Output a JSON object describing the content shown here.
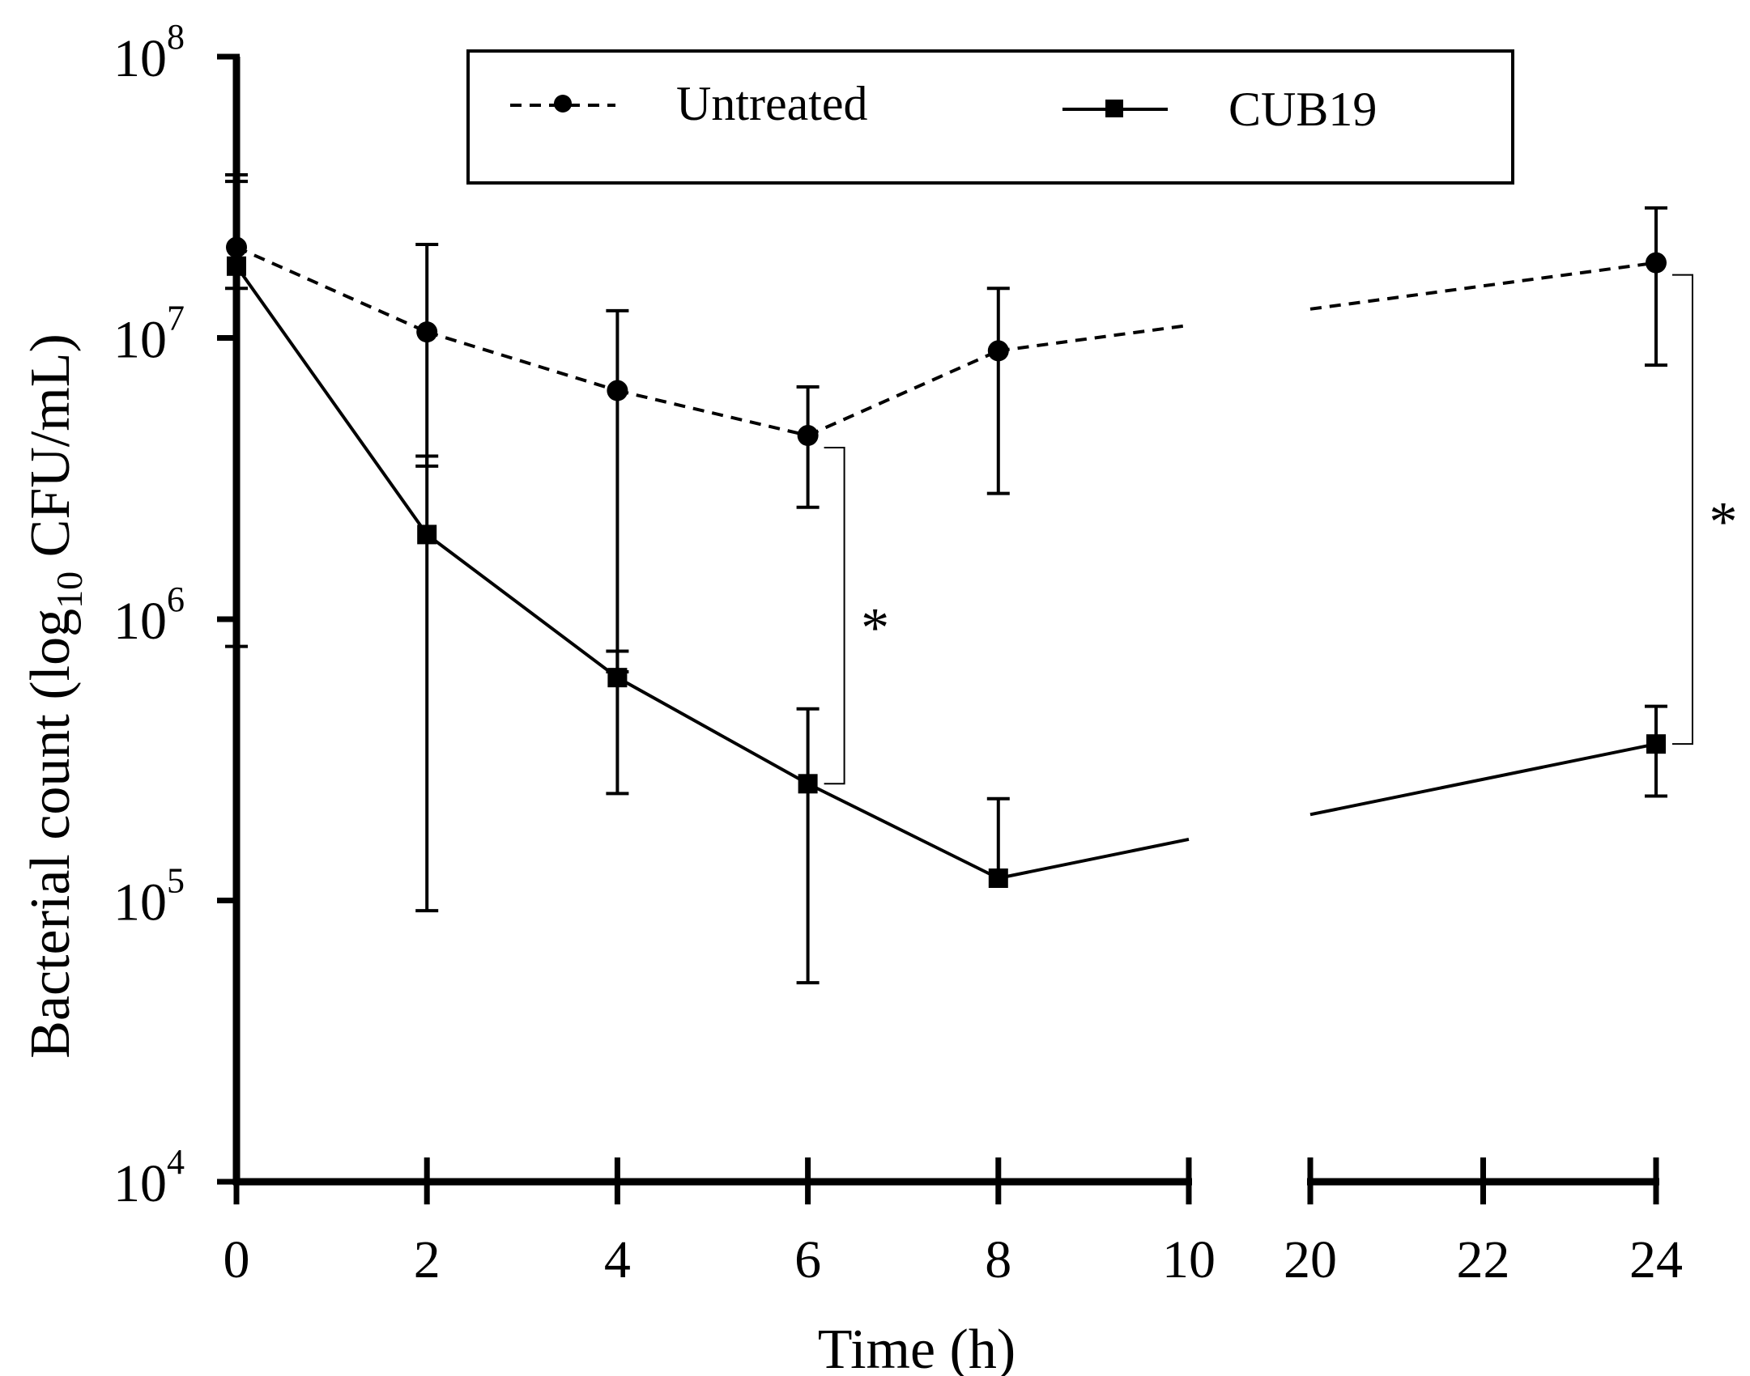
{
  "chart_data": {
    "type": "line",
    "title": "",
    "xlabel": "Time (h)",
    "ylabel_main": "Bacterial count (log",
    "ylabel_sub": "10",
    "ylabel_end": " CFU/mL)",
    "yscale": "log",
    "ylim": [
      10000,
      100000000
    ],
    "y_ticks": [
      {
        "value": 10000,
        "base": "10",
        "exp": "4"
      },
      {
        "value": 100000,
        "base": "10",
        "exp": "5"
      },
      {
        "value": 1000000,
        "base": "10",
        "exp": "6"
      },
      {
        "value": 10000000,
        "base": "10",
        "exp": "7"
      },
      {
        "value": 100000000,
        "base": "10",
        "exp": "8"
      }
    ],
    "x_segments": [
      {
        "range": [
          0,
          10
        ],
        "ticks": [
          0,
          2,
          4,
          6,
          8,
          10
        ],
        "tick_labels": [
          "0",
          "2",
          "4",
          "6",
          "8",
          "10"
        ]
      },
      {
        "range": [
          20,
          24
        ],
        "ticks": [
          20,
          22,
          24
        ],
        "tick_labels": [
          "20",
          "22",
          "24"
        ]
      }
    ],
    "legend": {
      "position": "top",
      "entries": [
        "Untreated",
        "CUB19"
      ]
    },
    "series": [
      {
        "name": "Untreated",
        "style": "dashed",
        "marker": "circle",
        "x": [
          0,
          2,
          4,
          6,
          8,
          24
        ],
        "y": [
          21000000,
          10500000,
          6500000,
          4500000,
          9000000,
          18500000
        ],
        "err_low": [
          15000000,
          3500000,
          650000,
          2500000,
          2800000,
          8000000
        ],
        "err_high": [
          38000000,
          21500000,
          12500000,
          6700000,
          15000000,
          29000000
        ]
      },
      {
        "name": "CUB19",
        "style": "solid",
        "marker": "square",
        "x": [
          0,
          2,
          4,
          6,
          8,
          24
        ],
        "y": [
          18000000,
          2000000,
          620000,
          260000,
          120000,
          360000
        ],
        "err_low": [
          800000,
          92000,
          240000,
          51000,
          null,
          235000
        ],
        "err_high": [
          36000000,
          3800000,
          770000,
          480000,
          230000,
          490000
        ]
      }
    ],
    "significance": [
      {
        "x": 6,
        "label": "*"
      },
      {
        "x": 24,
        "label": "*"
      }
    ]
  }
}
